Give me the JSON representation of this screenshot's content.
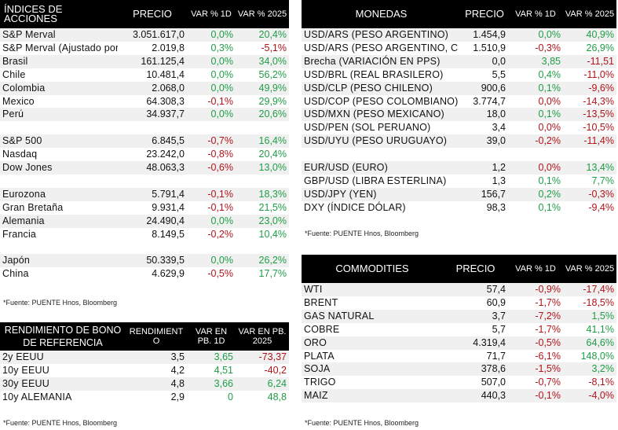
{
  "indices": {
    "headers": [
      "ÍNDICES DE ACCIONES",
      "PRECIO",
      "VAR % 1D",
      "VAR % 2025"
    ],
    "rows": [
      {
        "name": "S&P Merval",
        "price": "3.051.617,0",
        "d1": "0,0%",
        "ytd": "20,4%",
        "d1c": "pos",
        "ytdc": "pos"
      },
      {
        "name": "S&P Merval (Ajustado por",
        "price": "2.019,8",
        "d1": "0,3%",
        "ytd": "-5,1%",
        "d1c": "pos",
        "ytdc": "neg"
      },
      {
        "name": "Brasil",
        "price": "161.125,4",
        "d1": "0,0%",
        "ytd": "34,0%",
        "d1c": "pos",
        "ytdc": "pos"
      },
      {
        "name": "Chile",
        "price": "10.481,4",
        "d1": "0,0%",
        "ytd": "56,2%",
        "d1c": "pos",
        "ytdc": "pos"
      },
      {
        "name": "Colombia",
        "price": "2.068,0",
        "d1": "0,0%",
        "ytd": "49,9%",
        "d1c": "pos",
        "ytdc": "pos"
      },
      {
        "name": "Mexico",
        "price": "64.308,3",
        "d1": "-0,1%",
        "ytd": "29,9%",
        "d1c": "neg",
        "ytdc": "pos"
      },
      {
        "name": "Perú",
        "price": "34.937,7",
        "d1": "0,0%",
        "ytd": "20,6%",
        "d1c": "pos",
        "ytdc": "pos"
      },
      {
        "gap": true
      },
      {
        "name": "S&P 500",
        "price": "6.845,5",
        "d1": "-0,7%",
        "ytd": "16,4%",
        "d1c": "neg",
        "ytdc": "pos"
      },
      {
        "name": "Nasdaq",
        "price": "23.242,0",
        "d1": "-0,8%",
        "ytd": "20,4%",
        "d1c": "neg",
        "ytdc": "pos"
      },
      {
        "name": "Dow Jones",
        "price": "48.063,3",
        "d1": "-0,6%",
        "ytd": "13,0%",
        "d1c": "neg",
        "ytdc": "pos"
      },
      {
        "gap": true
      },
      {
        "name": "Eurozona",
        "price": "5.791,4",
        "d1": "-0,1%",
        "ytd": "18,3%",
        "d1c": "neg",
        "ytdc": "pos"
      },
      {
        "name": "Gran Bretaña",
        "price": "9.931,4",
        "d1": "-0,1%",
        "ytd": "21,5%",
        "d1c": "neg",
        "ytdc": "pos"
      },
      {
        "name": "Alemania",
        "price": "24.490,4",
        "d1": "0,0%",
        "ytd": "23,0%",
        "d1c": "pos",
        "ytdc": "pos"
      },
      {
        "name": "Francia",
        "price": "8.149,5",
        "d1": "-0,2%",
        "ytd": "10,4%",
        "d1c": "neg",
        "ytdc": "pos"
      },
      {
        "gap": true
      },
      {
        "name": "Japón",
        "price": "50.339,5",
        "d1": "0,0%",
        "ytd": "26,2%",
        "d1c": "pos",
        "ytdc": "pos"
      },
      {
        "name": "China",
        "price": "4.629,9",
        "d1": "-0,5%",
        "ytd": "17,7%",
        "d1c": "neg",
        "ytdc": "pos"
      }
    ],
    "source": "*Fuente: PUENTE Hnos, Bloomberg"
  },
  "monedas": {
    "headers": [
      "MONEDAS",
      "PRECIO",
      "VAR % 1D",
      "VAR % 2025"
    ],
    "rows": [
      {
        "name": "USD/ARS (PESO ARGENTINO)",
        "price": "1.454,9",
        "d1": "0,0%",
        "ytd": "40,9%",
        "d1c": "pos",
        "ytdc": "pos"
      },
      {
        "name": "USD/ARS (PESO ARGENTINO, C",
        "price": "1.510,9",
        "d1": "-0,3%",
        "ytd": "26,9%",
        "d1c": "neg",
        "ytdc": "pos"
      },
      {
        "name": "Brecha (VARIACIÓN EN PPS)",
        "price": "0,0",
        "d1": "3,85",
        "ytd": "-11,51",
        "d1c": "pos",
        "ytdc": "neg"
      },
      {
        "name": "USD/BRL (REAL BRASILERO)",
        "price": "5,5",
        "d1": "0,4%",
        "ytd": "-11,0%",
        "d1c": "pos",
        "ytdc": "neg"
      },
      {
        "name": "USD/CLP (PESO CHILENO)",
        "price": "900,6",
        "d1": "0,1%",
        "ytd": "-9,6%",
        "d1c": "pos",
        "ytdc": "neg"
      },
      {
        "name": "USD/COP (PESO COLOMBIANO)",
        "price": "3.774,7",
        "d1": "0,0%",
        "ytd": "-14,3%",
        "d1c": "neg",
        "ytdc": "neg"
      },
      {
        "name": "USD/MXN (PESO MEXICANO)",
        "price": "18,0",
        "d1": "0,1%",
        "ytd": "-13,5%",
        "d1c": "pos",
        "ytdc": "neg"
      },
      {
        "name": "USD/PEN (SOL PERUANO)",
        "price": "3,4",
        "d1": "0,0%",
        "ytd": "-10,5%",
        "d1c": "neg",
        "ytdc": "neg"
      },
      {
        "name": "USD/UYU (PESO URUGUAYO)",
        "price": "39,0",
        "d1": "-0,2%",
        "ytd": "-11,4%",
        "d1c": "neg",
        "ytdc": "neg"
      },
      {
        "gap": true
      },
      {
        "name": "EUR/USD (EURO)",
        "price": "1,2",
        "d1": "0,0%",
        "ytd": "13,4%",
        "d1c": "neg",
        "ytdc": "pos"
      },
      {
        "name": "GBP/USD (LIBRA ESTERLINA)",
        "price": "1,3",
        "d1": "0,1%",
        "ytd": "7,7%",
        "d1c": "pos",
        "ytdc": "pos"
      },
      {
        "name": "USD/JPY (YEN)",
        "price": "156,7",
        "d1": "0,2%",
        "ytd": "-0,3%",
        "d1c": "pos",
        "ytdc": "neg"
      },
      {
        "name": "DXY (ÍNDICE DÓLAR)",
        "price": "98,3",
        "d1": "0,1%",
        "ytd": "-9,4%",
        "d1c": "pos",
        "ytdc": "neg"
      }
    ],
    "source": "*Fuente: PUENTE Hnos, Bloomberg"
  },
  "bonos": {
    "headers": [
      "RENDIMIENTO DE BONO DE REFERENCIA",
      "RENDIMIENT O",
      "VAR EN PB. 1D",
      "VAR EN PB. 2025"
    ],
    "rows": [
      {
        "name": "2y EEUU",
        "price": "3,5",
        "d1": "3,65",
        "ytd": "-73,37",
        "d1c": "pos",
        "ytdc": "neg"
      },
      {
        "name": "10y EEUU",
        "price": "4,2",
        "d1": "4,51",
        "ytd": "-40,2",
        "d1c": "pos",
        "ytdc": "neg"
      },
      {
        "name": "30y EEUU",
        "price": "4,8",
        "d1": "3,66",
        "ytd": "6,24",
        "d1c": "pos",
        "ytdc": "pos"
      },
      {
        "name": "10y ALEMANIA",
        "price": "2,9",
        "d1": "0",
        "ytd": "48,8",
        "d1c": "pos",
        "ytdc": "pos"
      }
    ],
    "source": "*Fuente: PUENTE Hnos, Bloomberg"
  },
  "commodities": {
    "headers": [
      "COMMODITIES",
      "PRECIO",
      "VAR % 1D",
      "VAR % 2025"
    ],
    "rows": [
      {
        "name": "WTI",
        "price": "57,4",
        "d1": "-0,9%",
        "ytd": "-17,4%",
        "d1c": "neg",
        "ytdc": "neg"
      },
      {
        "name": "BRENT",
        "price": "60,9",
        "d1": "-1,7%",
        "ytd": "-18,5%",
        "d1c": "neg",
        "ytdc": "neg"
      },
      {
        "name": "GAS NATURAL",
        "price": "3,7",
        "d1": "-7,2%",
        "ytd": "1,5%",
        "d1c": "neg",
        "ytdc": "pos"
      },
      {
        "name": "COBRE",
        "price": "5,7",
        "d1": "-1,7%",
        "ytd": "41,1%",
        "d1c": "neg",
        "ytdc": "pos"
      },
      {
        "name": "ORO",
        "price": "4.319,4",
        "d1": "-0,5%",
        "ytd": "64,6%",
        "d1c": "neg",
        "ytdc": "pos"
      },
      {
        "name": "PLATA",
        "price": "71,7",
        "d1": "-6,1%",
        "ytd": "148,0%",
        "d1c": "neg",
        "ytdc": "pos"
      },
      {
        "name": "SOJA",
        "price": "378,6",
        "d1": "-1,5%",
        "ytd": "3,2%",
        "d1c": "neg",
        "ytdc": "pos"
      },
      {
        "name": "TRIGO",
        "price": "507,0",
        "d1": "-0,7%",
        "ytd": "-8,1%",
        "d1c": "neg",
        "ytdc": "neg"
      },
      {
        "name": "MAIZ",
        "price": "440,3",
        "d1": "-0,1%",
        "ytd": "-4,0%",
        "d1c": "neg",
        "ytdc": "neg"
      }
    ],
    "source": "*Fuente: PUENTE Hnos, Bloomberg"
  },
  "colors": {
    "positive": "#1f9d46",
    "negative": "#b0141a",
    "header_bg": "#000000",
    "stripe": "#f0f0f0"
  }
}
